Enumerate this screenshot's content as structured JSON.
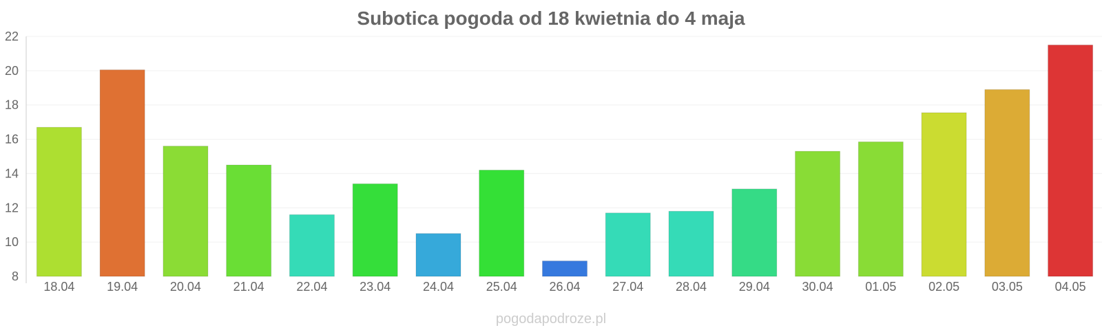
{
  "chart_data": {
    "type": "bar",
    "title": "Subotica pogoda od 18 kwietnia do 4 maja",
    "xlabel": "",
    "ylabel": "",
    "categories": [
      "18.04",
      "19.04",
      "20.04",
      "21.04",
      "22.04",
      "23.04",
      "24.04",
      "25.04",
      "26.04",
      "27.04",
      "28.04",
      "29.04",
      "30.04",
      "01.05",
      "02.05",
      "03.05",
      "04.05"
    ],
    "values": [
      16.7,
      20.05,
      15.6,
      14.5,
      11.6,
      13.4,
      10.5,
      14.2,
      8.9,
      11.7,
      11.8,
      13.1,
      15.3,
      15.85,
      17.55,
      18.9,
      21.5
    ],
    "colors": [
      "#addf31",
      "#df7133",
      "#8bdc35",
      "#6ade35",
      "#35dbb7",
      "#35de3a",
      "#36a9da",
      "#34e036",
      "#3679de",
      "#35dbb7",
      "#35dbb7",
      "#35db86",
      "#89dc36",
      "#89dc36",
      "#cbdc31",
      "#dcab35",
      "#dd3535"
    ],
    "ylim": [
      8,
      22
    ],
    "yticks": [
      8,
      10,
      12,
      14,
      16,
      18,
      20,
      22
    ],
    "grid": true,
    "legend": "none"
  },
  "watermark": "pogodapodroze.pl"
}
